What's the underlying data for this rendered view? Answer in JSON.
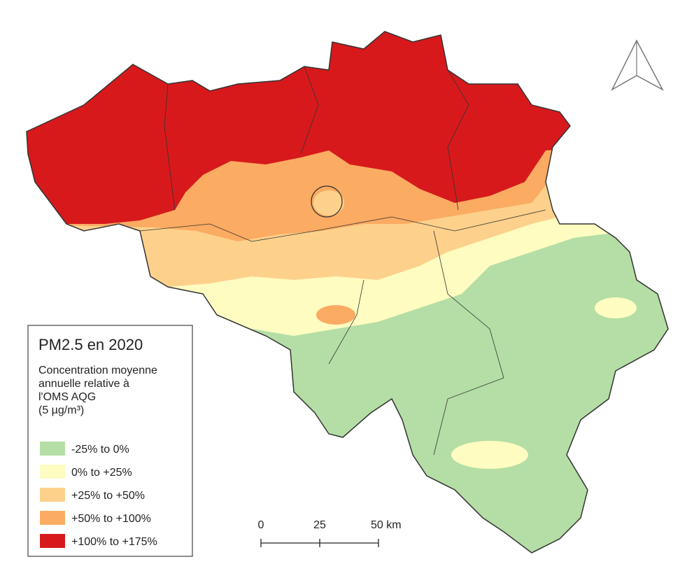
{
  "legend": {
    "title": "PM2.5 en 2020",
    "subtitle_lines": [
      "Concentration moyenne",
      "annuelle relative à",
      "l'OMS AQG",
      "(5 µg/m³)"
    ],
    "classes": [
      {
        "label": "-25% to 0%",
        "color": "#b4dea5"
      },
      {
        "label": "0% to +25%",
        "color": "#fefcc0"
      },
      {
        "label": "+25% to +50%",
        "color": "#fdd18c"
      },
      {
        "label": "+50% to +100%",
        "color": "#fbab62"
      },
      {
        "label": "+100% to +175%",
        "color": "#d7191c"
      }
    ]
  },
  "scale_bar": {
    "labels": [
      "0",
      "25",
      "50 km"
    ]
  }
}
